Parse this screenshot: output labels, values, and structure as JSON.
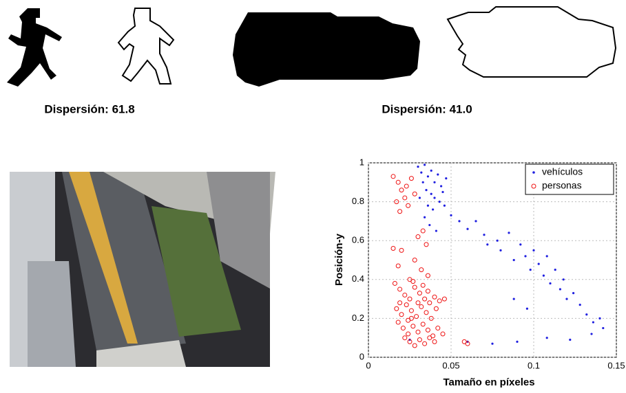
{
  "captions": [
    "Dispersión: 61.8",
    "Dispersión: 41.0"
  ],
  "chart_data": {
    "type": "scatter",
    "xlabel": "Tamaño en píxeles",
    "ylabel": "Posición-y",
    "xlim": [
      0,
      0.15
    ],
    "xticks": [
      0,
      0.05,
      0.1,
      0.15
    ],
    "ylim": [
      0,
      1
    ],
    "yticks": [
      0,
      0.2,
      0.4,
      0.6,
      0.8,
      1
    ],
    "grid": true,
    "legend": "upper-right",
    "series": [
      {
        "name": "vehículos",
        "color": "#2020e0",
        "marker": "dot",
        "x": [
          0.03,
          0.032,
          0.034,
          0.036,
          0.038,
          0.04,
          0.042,
          0.044,
          0.035,
          0.038,
          0.04,
          0.043,
          0.045,
          0.033,
          0.031,
          0.036,
          0.039,
          0.034,
          0.037,
          0.041,
          0.047,
          0.046,
          0.05,
          0.055,
          0.06,
          0.065,
          0.07,
          0.072,
          0.078,
          0.08,
          0.085,
          0.088,
          0.092,
          0.095,
          0.098,
          0.1,
          0.103,
          0.106,
          0.108,
          0.11,
          0.113,
          0.116,
          0.118,
          0.12,
          0.124,
          0.128,
          0.132,
          0.136,
          0.14,
          0.142,
          0.025,
          0.06,
          0.075,
          0.09,
          0.108,
          0.122,
          0.135,
          0.096,
          0.088
        ],
        "values": [
          0.98,
          0.95,
          0.99,
          0.93,
          0.96,
          0.9,
          0.94,
          0.88,
          0.86,
          0.84,
          0.82,
          0.8,
          0.85,
          0.9,
          0.82,
          0.78,
          0.76,
          0.72,
          0.68,
          0.65,
          0.92,
          0.78,
          0.73,
          0.7,
          0.66,
          0.7,
          0.63,
          0.58,
          0.6,
          0.55,
          0.64,
          0.5,
          0.58,
          0.52,
          0.45,
          0.55,
          0.48,
          0.42,
          0.52,
          0.38,
          0.45,
          0.35,
          0.4,
          0.3,
          0.33,
          0.27,
          0.22,
          0.18,
          0.2,
          0.15,
          0.09,
          0.08,
          0.07,
          0.08,
          0.1,
          0.09,
          0.12,
          0.25,
          0.3
        ]
      },
      {
        "name": "personas",
        "color": "#ee1111",
        "marker": "circle",
        "x": [
          0.015,
          0.018,
          0.02,
          0.022,
          0.024,
          0.019,
          0.023,
          0.026,
          0.028,
          0.017,
          0.015,
          0.02,
          0.03,
          0.033,
          0.035,
          0.028,
          0.032,
          0.036,
          0.018,
          0.025,
          0.016,
          0.019,
          0.022,
          0.025,
          0.028,
          0.031,
          0.034,
          0.037,
          0.04,
          0.043,
          0.046,
          0.017,
          0.02,
          0.023,
          0.026,
          0.029,
          0.032,
          0.035,
          0.038,
          0.041,
          0.018,
          0.021,
          0.024,
          0.027,
          0.03,
          0.033,
          0.036,
          0.039,
          0.042,
          0.045,
          0.022,
          0.025,
          0.028,
          0.031,
          0.034,
          0.037,
          0.04,
          0.019,
          0.024,
          0.027,
          0.03,
          0.033,
          0.036,
          0.026,
          0.058,
          0.06
        ],
        "values": [
          0.93,
          0.9,
          0.86,
          0.82,
          0.78,
          0.75,
          0.88,
          0.92,
          0.84,
          0.8,
          0.56,
          0.55,
          0.62,
          0.65,
          0.58,
          0.5,
          0.45,
          0.42,
          0.47,
          0.4,
          0.38,
          0.35,
          0.32,
          0.3,
          0.36,
          0.33,
          0.3,
          0.28,
          0.31,
          0.29,
          0.3,
          0.25,
          0.22,
          0.27,
          0.24,
          0.21,
          0.26,
          0.23,
          0.2,
          0.25,
          0.18,
          0.15,
          0.19,
          0.16,
          0.13,
          0.17,
          0.14,
          0.11,
          0.15,
          0.12,
          0.1,
          0.08,
          0.06,
          0.09,
          0.07,
          0.1,
          0.08,
          0.28,
          0.12,
          0.39,
          0.28,
          0.37,
          0.34,
          0.2,
          0.08,
          0.07
        ]
      }
    ]
  }
}
